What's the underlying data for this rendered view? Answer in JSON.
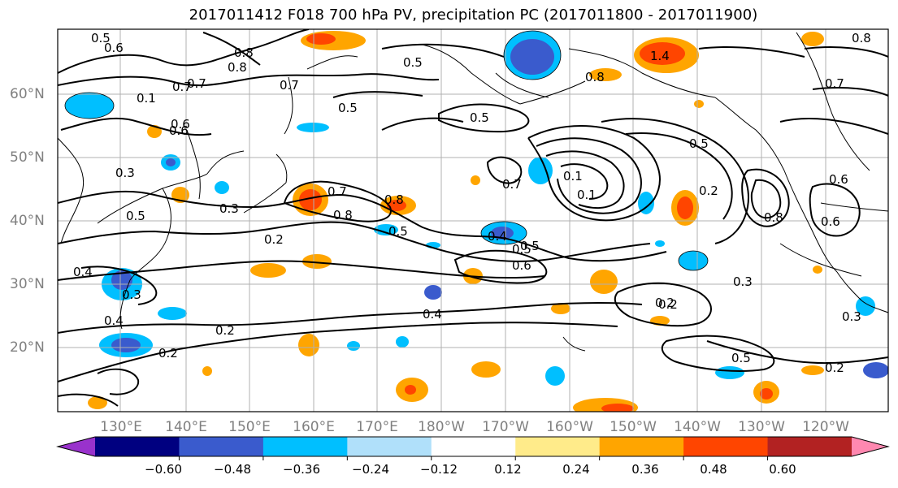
{
  "title": "2017011412 F018 700 hPa PV, precipitation PC (2017011800 - 2017011900)",
  "lat_labels": [
    "60°N",
    "50°N",
    "40°N",
    "30°N",
    "20°N"
  ],
  "lon_labels": [
    "130°E",
    "140°E",
    "150°E",
    "160°E",
    "170°E",
    "180°W",
    "170°W",
    "160°W",
    "150°W",
    "140°W",
    "130°W",
    "120°W"
  ],
  "colorbar": {
    "ticks": [
      "−0.60",
      "−0.48",
      "−0.36",
      "−0.24",
      "−0.12",
      "0.12",
      "0.24",
      "0.36",
      "0.48",
      "0.60"
    ],
    "colors": [
      "#9932cc",
      "#000080",
      "#3a5bcd",
      "#00bfff",
      "#b0e0fa",
      "#ffffff",
      "#ffeb8a",
      "#ffa500",
      "#ff4500",
      "#b22222",
      "#ff88b0"
    ]
  },
  "contour_labels": [
    "0.5",
    "0.6",
    "0.8",
    "0.7",
    "0.1",
    "0.7",
    "0.6",
    "0.3",
    "0.5",
    "0.3",
    "0.2",
    "0.8",
    "0.5",
    "0.2",
    "0.4",
    "0.3",
    "0.4",
    "0.5",
    "0.6",
    "0.4",
    "0.2",
    "0.5",
    "0.8",
    "0.7",
    "0.5",
    "0.8",
    "0.5",
    "0.5",
    "0.1",
    "0.1",
    "0.4",
    "0.2",
    "0.3",
    "0.2",
    "0.5",
    "0.7",
    "0.8",
    "0.6",
    "0.8",
    "0.6",
    "0.7",
    "0.8",
    "0.2",
    "0.3",
    "0.5",
    "0.6",
    "0.2",
    "1.4",
    "0.7"
  ]
}
